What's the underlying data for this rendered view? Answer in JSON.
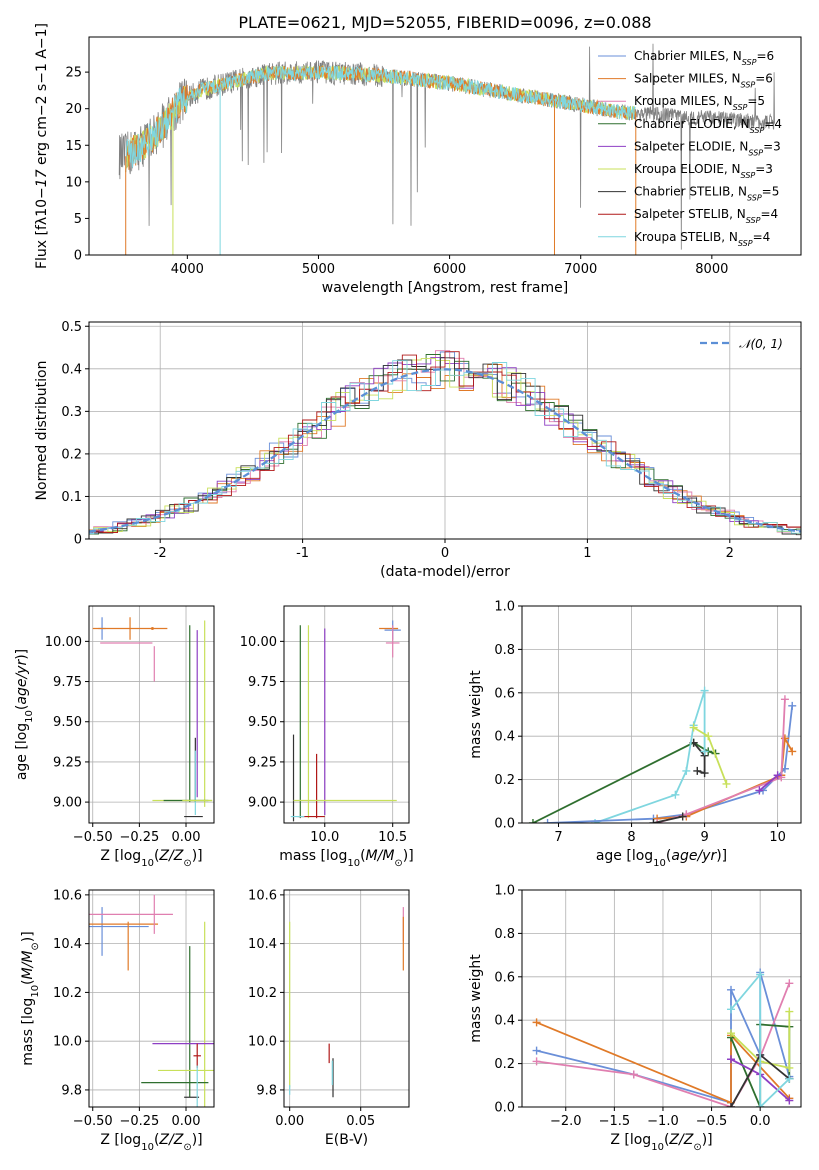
{
  "colors": {
    "chabrier_miles": "#6a8fd8",
    "salpeter_miles": "#e07a28",
    "kroupa_miles": "#e07fb0",
    "chabrier_elodie": "#2f6f2f",
    "salpeter_elodie": "#8e3fc4",
    "kroupa_elodie": "#c8e05a",
    "chabrier_stelib": "#333333",
    "salpeter_stelib": "#b01818",
    "kroupa_stelib": "#7fd6df",
    "grey_spectrum": "#808080"
  },
  "chart_data": [
    {
      "id": "spectrum",
      "type": "line",
      "title": "PLATE=0621, MJD=52055, FIBERID=0096, z=0.088",
      "xlabel": "wavelength [Angstrom, rest frame]",
      "ylabel_parts": {
        "a": "Flux [f",
        "b": "λ",
        "c": "10",
        "d": "−17",
        "e": " erg cm",
        "f": "−2",
        "g": " s",
        "h": "−1",
        "i": " A",
        "j": "−1",
        "k": "]"
      },
      "xlim": [
        3250,
        8680
      ],
      "ylim": [
        0,
        29.8
      ],
      "xticks": [
        4000,
        5000,
        6000,
        7000,
        8000
      ],
      "yticks": [
        0,
        5,
        10,
        15,
        20,
        25
      ],
      "grid": false,
      "legend_position": "upper-right",
      "series": [
        {
          "name": "Chabrier MILES, N",
          "sub": "SSP",
          "suffix": "=6",
          "color": "chabrier_miles"
        },
        {
          "name": "Salpeter MILES, N",
          "sub": "SSP",
          "suffix": "=6",
          "color": "salpeter_miles"
        },
        {
          "name": "Kroupa MILES, N",
          "sub": "SSP",
          "suffix": "=5",
          "color": "kroupa_miles"
        },
        {
          "name": "Chabrier ELODIE, N",
          "sub": "SSP",
          "suffix": "=4",
          "color": "chabrier_elodie"
        },
        {
          "name": "Salpeter ELODIE, N",
          "sub": "SSP",
          "suffix": "=3",
          "color": "salpeter_elodie"
        },
        {
          "name": "Kroupa ELODIE, N",
          "sub": "SSP",
          "suffix": "=3",
          "color": "kroupa_elodie"
        },
        {
          "name": "Chabrier STELIB, N",
          "sub": "SSP",
          "suffix": "=5",
          "color": "chabrier_stelib"
        },
        {
          "name": "Salpeter STELIB, N",
          "sub": "SSP",
          "suffix": "=4",
          "color": "salpeter_stelib"
        },
        {
          "name": "Kroupa STELIB, N",
          "sub": "SSP",
          "suffix": "=4",
          "color": "kroupa_stelib"
        }
      ],
      "continuum_flux": [
        [
          3530,
          13.5
        ],
        [
          3700,
          15.5
        ],
        [
          3850,
          18.5
        ],
        [
          3950,
          21
        ],
        [
          4100,
          22.5
        ],
        [
          4300,
          23.5
        ],
        [
          4600,
          24.8
        ],
        [
          5000,
          25
        ],
        [
          5500,
          24.5
        ],
        [
          6000,
          23.5
        ],
        [
          6500,
          22
        ],
        [
          7000,
          20.5
        ],
        [
          7300,
          19.5
        ]
      ],
      "observed_wavelength_range": [
        3480,
        8480
      ],
      "model_wavelength_range": [
        3530,
        7420
      ]
    },
    {
      "id": "residual_hist",
      "type": "histogram",
      "xlabel": "(data-model)/error",
      "ylabel": "Normed distribution",
      "xlim": [
        -2.5,
        2.5
      ],
      "ylim": [
        0,
        0.51
      ],
      "xticks": [
        -2,
        -1,
        0,
        1,
        2
      ],
      "yticks": [
        0.0,
        0.1,
        0.2,
        0.3,
        0.4,
        0.5
      ],
      "grid": true,
      "legend_position": "upper-right",
      "legend_label": "𝒩(0, 1)",
      "bin_width": 0.1
    },
    {
      "id": "age_vs_Z",
      "type": "errorbar",
      "xlabel_parts": {
        "a": "Z [log",
        "b": "10",
        "c": "(",
        "d": "Z/Z",
        "e": "⊙",
        "f": ")]"
      },
      "ylabel_parts": {
        "a": "age  [log",
        "b": "10",
        "c": "(",
        "d": "age/yr",
        "e": ")]"
      },
      "xlim": [
        -0.52,
        0.15
      ],
      "ylim": [
        8.87,
        10.22
      ],
      "xticks": [
        -0.5,
        -0.25,
        0.0
      ],
      "xticklabels": [
        "−0.50",
        "−0.25",
        "0.00"
      ],
      "yticks": [
        9.0,
        9.25,
        9.5,
        9.75,
        10.0
      ],
      "yticklabels": [
        "9.00",
        "9.25",
        "9.50",
        "9.75",
        "10.00"
      ],
      "grid": true,
      "points": [
        {
          "x": -0.45,
          "xerr": 0.02,
          "y": 10.08,
          "yerr": 0.07,
          "color": "chabrier_miles"
        },
        {
          "x": -0.3,
          "xerr": 0.2,
          "y": 10.08,
          "yerr": 0.07,
          "color": "salpeter_miles"
        },
        {
          "x": -0.32,
          "xerr": 0.14,
          "y": 9.99,
          "yerr": 0.0,
          "color": "kroupa_miles"
        },
        {
          "x": -0.18,
          "xerr": 0.0,
          "y": 10.08,
          "yerr": 0.0,
          "color": "salpeter_miles"
        },
        {
          "x": -0.17,
          "xerr": 0.0,
          "y": 9.86,
          "yerr": 0.11,
          "color": "kroupa_miles"
        },
        {
          "x": 0.02,
          "xerr": 0.0,
          "y": 9.55,
          "yerr": 0.55,
          "color": "chabrier_elodie"
        },
        {
          "x": 0.1,
          "xerr": 0.0,
          "y": 9.55,
          "yerr": 0.58,
          "color": "kroupa_elodie"
        },
        {
          "x": 0.06,
          "xerr": 0.0,
          "y": 9.55,
          "yerr": 0.52,
          "color": "salpeter_elodie"
        },
        {
          "x": 0.05,
          "xerr": 0.0,
          "y": 9.2,
          "yerr": 0.2,
          "color": "chabrier_stelib"
        },
        {
          "x": 0.05,
          "xerr": 0.0,
          "y": 9.12,
          "yerr": 0.2,
          "color": "kroupa_stelib"
        },
        {
          "x": -0.02,
          "xerr": 0.16,
          "y": 9.01,
          "yerr": 0.0,
          "color": "kroupa_elodie"
        },
        {
          "x": 0.0,
          "xerr": 0.12,
          "y": 9.01,
          "yerr": 0.0,
          "color": "chabrier_elodie"
        },
        {
          "x": 0.06,
          "xerr": 0.08,
          "y": 9.01,
          "yerr": 0.0,
          "color": "kroupa_elodie"
        },
        {
          "x": 0.04,
          "xerr": 0.05,
          "y": 8.91,
          "yerr": 0.0,
          "color": "chabrier_stelib"
        }
      ]
    },
    {
      "id": "age_vs_mass",
      "type": "errorbar",
      "xlabel_parts": {
        "a": "mass [log",
        "b": "10",
        "c": "(",
        "d": "M/M",
        "e": "⊙",
        "f": ")]"
      },
      "xlim": [
        9.7,
        10.62
      ],
      "ylim": [
        8.87,
        10.22
      ],
      "xticks": [
        10.0,
        10.5
      ],
      "xticklabels": [
        "10.0",
        "10.5"
      ],
      "yticks": [
        9.0,
        9.25,
        9.5,
        9.75,
        10.0
      ],
      "yticklabels": [
        "9.00",
        "9.25",
        "9.50",
        "9.75",
        "10.00"
      ],
      "grid": true,
      "points": [
        {
          "x": 10.47,
          "xerr": 0.07,
          "y": 10.08,
          "yerr": 0.0,
          "color": "salpeter_miles"
        },
        {
          "x": 10.5,
          "xerr": 0.06,
          "y": 10.07,
          "yerr": 0.06,
          "color": "chabrier_miles"
        },
        {
          "x": 10.5,
          "xerr": 0.0,
          "y": 10.0,
          "yerr": 0.1,
          "color": "kroupa_miles"
        },
        {
          "x": 10.5,
          "xerr": 0.05,
          "y": 9.99,
          "yerr": 0.0,
          "color": "kroupa_miles"
        },
        {
          "x": 10.0,
          "xerr": 0.0,
          "y": 9.5,
          "yerr": 0.58,
          "color": "salpeter_elodie"
        },
        {
          "x": 9.88,
          "xerr": 0.0,
          "y": 9.5,
          "yerr": 0.6,
          "color": "kroupa_elodie"
        },
        {
          "x": 9.82,
          "xerr": 0.0,
          "y": 9.5,
          "yerr": 0.6,
          "color": "chabrier_elodie"
        },
        {
          "x": 9.77,
          "xerr": 0.0,
          "y": 9.15,
          "yerr": 0.27,
          "color": "chabrier_stelib"
        },
        {
          "x": 9.94,
          "xerr": 0.0,
          "y": 9.1,
          "yerr": 0.2,
          "color": "salpeter_stelib"
        },
        {
          "x": 10.15,
          "xerr": 0.38,
          "y": 9.01,
          "yerr": 0.0,
          "color": "kroupa_elodie"
        },
        {
          "x": 9.9,
          "xerr": 0.1,
          "y": 8.91,
          "yerr": 0.0,
          "color": "salpeter_stelib"
        },
        {
          "x": 9.8,
          "xerr": 0.05,
          "y": 8.91,
          "yerr": 0.0,
          "color": "kroupa_stelib"
        }
      ]
    },
    {
      "id": "weight_vs_age",
      "type": "line",
      "xlabel_parts": {
        "a": "age  [log",
        "b": "10",
        "c": "(",
        "d": "age/yr",
        "e": ")]"
      },
      "ylabel": "mass weight",
      "xlim": [
        6.5,
        10.32
      ],
      "ylim": [
        0,
        1.0
      ],
      "xticks": [
        7,
        8,
        9,
        10
      ],
      "yticks": [
        0.0,
        0.2,
        0.4,
        0.6,
        0.8,
        1.0
      ],
      "yticklabels": [
        "0.0",
        "0.2",
        "0.4",
        "0.6",
        "0.8",
        "1.0"
      ],
      "grid": true,
      "series": [
        {
          "color": "chabrier_elodie",
          "x": [
            6.65,
            8.85,
            9.05,
            9.15
          ],
          "y": [
            0.0,
            0.37,
            0.33,
            0.32
          ]
        },
        {
          "color": "chabrier_stelib",
          "x": [
            8.85,
            9.0,
            9.0,
            8.9
          ],
          "y": [
            0.37,
            0.31,
            0.23,
            0.24
          ]
        },
        {
          "color": "kroupa_stelib",
          "x": [
            7.5,
            8.6,
            8.75,
            8.85,
            9.0,
            9.0
          ],
          "y": [
            0.0,
            0.13,
            0.24,
            0.45,
            0.61,
            0.33
          ]
        },
        {
          "color": "kroupa_elodie",
          "x": [
            8.85,
            9.05,
            9.3
          ],
          "y": [
            0.44,
            0.4,
            0.18
          ]
        },
        {
          "color": "chabrier_miles",
          "x": [
            6.85,
            8.3,
            8.75,
            9.8,
            10.1,
            10.2
          ],
          "y": [
            0.0,
            0.02,
            0.04,
            0.15,
            0.25,
            0.54
          ]
        },
        {
          "color": "salpeter_miles",
          "x": [
            8.35,
            8.75,
            10.05,
            10.1,
            10.2
          ],
          "y": [
            0.02,
            0.03,
            0.22,
            0.39,
            0.33
          ]
        },
        {
          "color": "kroupa_miles",
          "x": [
            8.35,
            8.75,
            10.05,
            10.1
          ],
          "y": [
            0.0,
            0.04,
            0.21,
            0.57
          ]
        },
        {
          "color": "salpeter_elodie",
          "x": [
            9.75,
            10.0
          ],
          "y": [
            0.15,
            0.22
          ]
        },
        {
          "color": "chabrier_stelib",
          "x": [
            8.3,
            8.7
          ],
          "y": [
            0.0,
            0.03
          ]
        }
      ]
    },
    {
      "id": "mass_vs_Z",
      "type": "errorbar",
      "xlabel_parts": {
        "a": "Z [log",
        "b": "10",
        "c": "(",
        "d": "Z/Z",
        "e": "⊙",
        "f": ")]"
      },
      "ylabel_parts": {
        "a": "mass [log",
        "b": "10",
        "c": "(",
        "d": "M/M",
        "e": "⊙",
        "f": ")]"
      },
      "xlim": [
        -0.52,
        0.15
      ],
      "ylim": [
        9.73,
        10.62
      ],
      "xticks": [
        -0.5,
        -0.25,
        0.0
      ],
      "xticklabels": [
        "−0.50",
        "−0.25",
        "0.00"
      ],
      "yticks": [
        9.8,
        10.0,
        10.2,
        10.4,
        10.6
      ],
      "yticklabels": [
        "9.8",
        "10.0",
        "10.2",
        "10.4",
        "10.6"
      ],
      "grid": true,
      "points": [
        {
          "x": -0.45,
          "xerr": 0.0,
          "y": 10.45,
          "yerr": 0.1,
          "color": "chabrier_miles"
        },
        {
          "x": -0.37,
          "xerr": 0.17,
          "y": 10.47,
          "yerr": 0.0,
          "color": "chabrier_miles"
        },
        {
          "x": -0.34,
          "xerr": 0.19,
          "y": 10.48,
          "yerr": 0.0,
          "color": "salpeter_miles"
        },
        {
          "x": -0.31,
          "xerr": 0.0,
          "y": 10.39,
          "yerr": 0.1,
          "color": "salpeter_miles"
        },
        {
          "x": -0.3,
          "xerr": 0.23,
          "y": 10.52,
          "yerr": 0.0,
          "color": "kroupa_miles"
        },
        {
          "x": -0.17,
          "xerr": 0.0,
          "y": 10.52,
          "yerr": 0.08,
          "color": "kroupa_miles"
        },
        {
          "x": 0.02,
          "xerr": 0.0,
          "y": 10.08,
          "yerr": 0.31,
          "color": "chabrier_elodie"
        },
        {
          "x": 0.1,
          "xerr": 0.0,
          "y": 10.0,
          "yerr": 0.49,
          "color": "kroupa_elodie"
        },
        {
          "x": -0.01,
          "xerr": 0.17,
          "y": 9.99,
          "yerr": 0.0,
          "color": "salpeter_elodie"
        },
        {
          "x": 0.06,
          "xerr": 0.0,
          "y": 9.94,
          "yerr": 0.05,
          "color": "salpeter_stelib"
        },
        {
          "x": 0.06,
          "xerr": 0.02,
          "y": 9.94,
          "yerr": 0.0,
          "color": "salpeter_stelib"
        },
        {
          "x": 0.0,
          "xerr": 0.15,
          "y": 9.88,
          "yerr": 0.0,
          "color": "kroupa_elodie"
        },
        {
          "x": -0.06,
          "xerr": 0.18,
          "y": 9.83,
          "yerr": 0.0,
          "color": "chabrier_elodie"
        },
        {
          "x": 0.03,
          "xerr": 0.04,
          "y": 9.77,
          "yerr": 0.0,
          "color": "chabrier_stelib"
        },
        {
          "x": 0.06,
          "xerr": 0.0,
          "y": 9.8,
          "yerr": 0.1,
          "color": "kroupa_stelib"
        }
      ]
    },
    {
      "id": "mass_vs_ebv",
      "type": "errorbar",
      "xlabel": "E(B-V)",
      "xlim": [
        -0.004,
        0.084
      ],
      "ylim": [
        9.73,
        10.62
      ],
      "xticks": [
        0.0,
        0.05
      ],
      "xticklabels": [
        "0.00",
        "0.05"
      ],
      "yticks": [
        9.8,
        10.0,
        10.2,
        10.4,
        10.6
      ],
      "yticklabels": [
        "9.8",
        "10.0",
        "10.2",
        "10.4",
        "10.6"
      ],
      "grid": true,
      "points": [
        {
          "x": 0.08,
          "xerr": 0.0,
          "y": 10.48,
          "yerr": 0.07,
          "color": "kroupa_miles"
        },
        {
          "x": 0.08,
          "xerr": 0.0,
          "y": 10.4,
          "yerr": 0.11,
          "color": "salpeter_miles"
        },
        {
          "x": 0.0,
          "xerr": 0.0,
          "y": 10.15,
          "yerr": 0.34,
          "color": "kroupa_elodie"
        },
        {
          "x": 0.0,
          "xerr": 0.0,
          "y": 9.8,
          "yerr": 0.02,
          "color": "kroupa_stelib"
        },
        {
          "x": 0.0278,
          "xerr": 0.0,
          "y": 9.95,
          "yerr": 0.04,
          "color": "salpeter_stelib"
        },
        {
          "x": 0.0305,
          "xerr": 0.0,
          "y": 9.85,
          "yerr": 0.08,
          "color": "chabrier_stelib"
        },
        {
          "x": 0.03,
          "xerr": 0.0,
          "y": 9.87,
          "yerr": 0.05,
          "color": "kroupa_stelib"
        }
      ]
    },
    {
      "id": "weight_vs_Z",
      "type": "line",
      "xlabel_parts": {
        "a": "Z [log",
        "b": "10",
        "c": "(",
        "d": "Z/Z",
        "e": "⊙",
        "f": ")]"
      },
      "ylabel": "mass weight",
      "xlim": [
        -2.45,
        0.42
      ],
      "ylim": [
        0,
        1.0
      ],
      "xticks": [
        -2.0,
        -1.5,
        -1.0,
        -0.5,
        0.0
      ],
      "xticklabels": [
        "−2.0",
        "−1.5",
        "−1.0",
        "−0.5",
        "0.0"
      ],
      "yticks": [
        0.0,
        0.2,
        0.4,
        0.6,
        0.8,
        1.0
      ],
      "yticklabels": [
        "0.0",
        "0.2",
        "0.4",
        "0.6",
        "0.8",
        "1.0"
      ],
      "grid": true,
      "series": [
        {
          "color": "chabrier_miles",
          "x": [
            -2.3,
            -1.3,
            -0.3,
            -0.3,
            0.0,
            0.0,
            0.3
          ],
          "y": [
            0.26,
            0.15,
            0.02,
            0.54,
            0.24,
            0.62,
            0.14
          ]
        },
        {
          "color": "salpeter_miles",
          "x": [
            -2.3,
            -0.3,
            -0.3,
            0.3
          ],
          "y": [
            0.39,
            0.02,
            0.33,
            0.04
          ]
        },
        {
          "color": "kroupa_miles",
          "x": [
            -2.3,
            -1.3,
            -0.3,
            0.0,
            0.3
          ],
          "y": [
            0.21,
            0.15,
            0.0,
            0.23,
            0.57
          ]
        },
        {
          "color": "chabrier_elodie",
          "x": [
            -0.3,
            0.0,
            0.0,
            0.3,
            0.3
          ],
          "y": [
            0.32,
            0.0,
            0.38,
            0.37,
            0.13
          ]
        },
        {
          "color": "kroupa_elodie",
          "x": [
            -0.3,
            0.0,
            0.3,
            0.3
          ],
          "y": [
            0.34,
            0.21,
            0.18,
            0.44
          ]
        },
        {
          "color": "salpeter_elodie",
          "x": [
            -0.3,
            0.0,
            0.3
          ],
          "y": [
            0.22,
            0.15,
            0.03
          ]
        },
        {
          "color": "chabrier_stelib",
          "x": [
            -0.3,
            0.0,
            0.3
          ],
          "y": [
            0.0,
            0.24,
            0.13
          ]
        },
        {
          "color": "kroupa_stelib",
          "x": [
            -0.3,
            0.0,
            0.0,
            0.3
          ],
          "y": [
            0.45,
            0.61,
            0.0,
            0.13
          ]
        }
      ]
    }
  ]
}
